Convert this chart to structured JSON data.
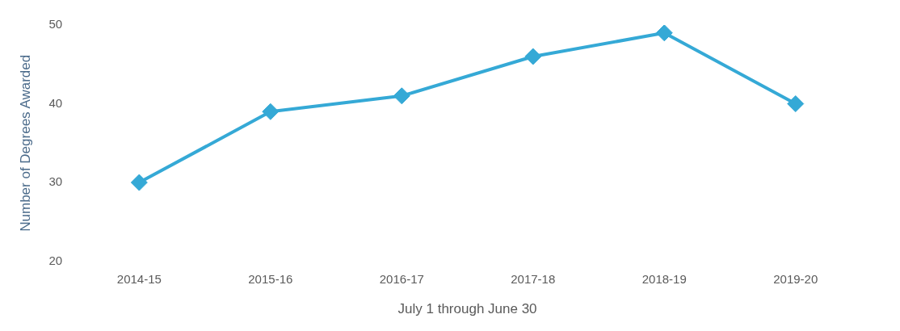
{
  "chart_data": {
    "type": "line",
    "xlabel": "July 1 through June 30",
    "ylabel": "Number of Degrees Awarded",
    "categories": [
      "2014-15",
      "2015-16",
      "2016-17",
      "2017-18",
      "2018-19",
      "2019-20"
    ],
    "series": [
      {
        "color": "#35a9d6",
        "values": [
          30,
          39,
          41,
          46,
          49,
          40
        ]
      }
    ],
    "ylim": [
      20,
      50
    ],
    "yticks": [
      20,
      30,
      40,
      50
    ],
    "grid": false,
    "legend": false,
    "marker": "diamond",
    "line_style": "solid"
  }
}
